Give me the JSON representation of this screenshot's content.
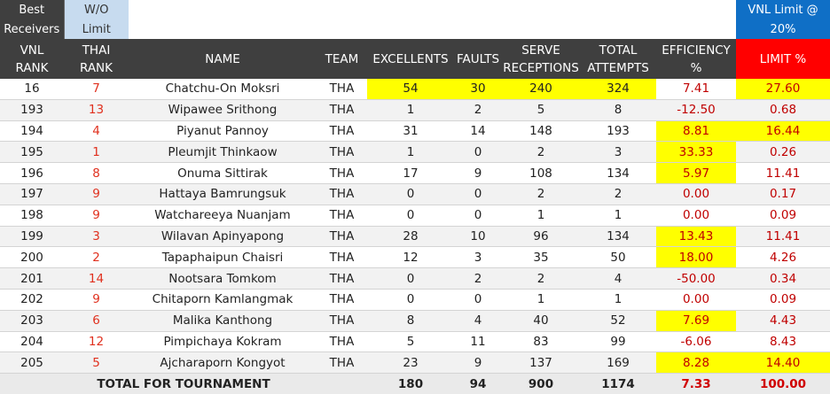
{
  "header_labels": {
    "best_receivers_line1": "Best",
    "best_receivers_line2": "Receivers",
    "wo_limit_line1": "W/O",
    "wo_limit_line2": "Limit",
    "vnl_limit_line1": "VNL Limit @",
    "vnl_limit_line2": "20%"
  },
  "columns": {
    "vnl_rank_line1": "VNL",
    "vnl_rank_line2": "RANK",
    "thai_rank_line1": "THAI",
    "thai_rank_line2": "RANK",
    "name": "NAME",
    "team": "TEAM",
    "excellents": "EXCELLENTS",
    "faults": "FAULTS",
    "serve_line1": "SERVE",
    "serve_line2": "RECEPTIONS",
    "total_line1": "TOTAL",
    "total_line2": "ATTEMPTS",
    "efficiency_line1": "EFFICIENCY",
    "efficiency_line2": "%",
    "limit": "LIMIT %"
  },
  "colors": {
    "header_bg": "#3f3f3f",
    "vnl_limit_bg": "#0f6fc6",
    "wo_limit_bg": "#c7dbef",
    "limit_header_bg": "#ff0000",
    "highlight": "#ffff00",
    "red_text": "#c00000"
  },
  "rows": [
    {
      "vnl": "16",
      "thai": "7",
      "name": "Chatchu-On Moksri",
      "team": "THA",
      "exc": "54",
      "faults": "30",
      "serve": "240",
      "total": "324",
      "eff": "7.41",
      "limit": "27.60"
    },
    {
      "vnl": "193",
      "thai": "13",
      "name": "Wipawee Srithong",
      "team": "THA",
      "exc": "1",
      "faults": "2",
      "serve": "5",
      "total": "8",
      "eff": "-12.50",
      "limit": "0.68"
    },
    {
      "vnl": "194",
      "thai": "4",
      "name": "Piyanut Pannoy",
      "team": "THA",
      "exc": "31",
      "faults": "14",
      "serve": "148",
      "total": "193",
      "eff": "8.81",
      "limit": "16.44"
    },
    {
      "vnl": "195",
      "thai": "1",
      "name": "Pleumjit Thinkaow",
      "team": "THA",
      "exc": "1",
      "faults": "0",
      "serve": "2",
      "total": "3",
      "eff": "33.33",
      "limit": "0.26"
    },
    {
      "vnl": "196",
      "thai": "8",
      "name": "Onuma Sittirak",
      "team": "THA",
      "exc": "17",
      "faults": "9",
      "serve": "108",
      "total": "134",
      "eff": "5.97",
      "limit": "11.41"
    },
    {
      "vnl": "197",
      "thai": "9",
      "name": "Hattaya Bamrungsuk",
      "team": "THA",
      "exc": "0",
      "faults": "0",
      "serve": "2",
      "total": "2",
      "eff": "0.00",
      "limit": "0.17"
    },
    {
      "vnl": "198",
      "thai": "9",
      "name": "Watchareeya Nuanjam",
      "team": "THA",
      "exc": "0",
      "faults": "0",
      "serve": "1",
      "total": "1",
      "eff": "0.00",
      "limit": "0.09"
    },
    {
      "vnl": "199",
      "thai": "3",
      "name": "Wilavan Apinyapong",
      "team": "THA",
      "exc": "28",
      "faults": "10",
      "serve": "96",
      "total": "134",
      "eff": "13.43",
      "limit": "11.41"
    },
    {
      "vnl": "200",
      "thai": "2",
      "name": "Tapaphaipun Chaisri",
      "team": "THA",
      "exc": "12",
      "faults": "3",
      "serve": "35",
      "total": "50",
      "eff": "18.00",
      "limit": "4.26"
    },
    {
      "vnl": "201",
      "thai": "14",
      "name": "Nootsara Tomkom",
      "team": "THA",
      "exc": "0",
      "faults": "2",
      "serve": "2",
      "total": "4",
      "eff": "-50.00",
      "limit": "0.34"
    },
    {
      "vnl": "202",
      "thai": "9",
      "name": "Chitaporn Kamlangmak",
      "team": "THA",
      "exc": "0",
      "faults": "0",
      "serve": "1",
      "total": "1",
      "eff": "0.00",
      "limit": "0.09"
    },
    {
      "vnl": "203",
      "thai": "6",
      "name": "Malika Kanthong",
      "team": "THA",
      "exc": "8",
      "faults": "4",
      "serve": "40",
      "total": "52",
      "eff": "7.69",
      "limit": "4.43"
    },
    {
      "vnl": "204",
      "thai": "12",
      "name": "Pimpichaya Kokram",
      "team": "THA",
      "exc": "5",
      "faults": "11",
      "serve": "83",
      "total": "99",
      "eff": "-6.06",
      "limit": "8.43"
    },
    {
      "vnl": "205",
      "thai": "5",
      "name": "Ajcharaporn Kongyot",
      "team": "THA",
      "exc": "23",
      "faults": "9",
      "serve": "137",
      "total": "169",
      "eff": "8.28",
      "limit": "14.40"
    }
  ],
  "totals": {
    "label": "TOTAL FOR TOURNAMENT",
    "exc": "180",
    "faults": "94",
    "serve": "900",
    "total": "1174",
    "eff": "7.33",
    "limit": "100.00"
  }
}
